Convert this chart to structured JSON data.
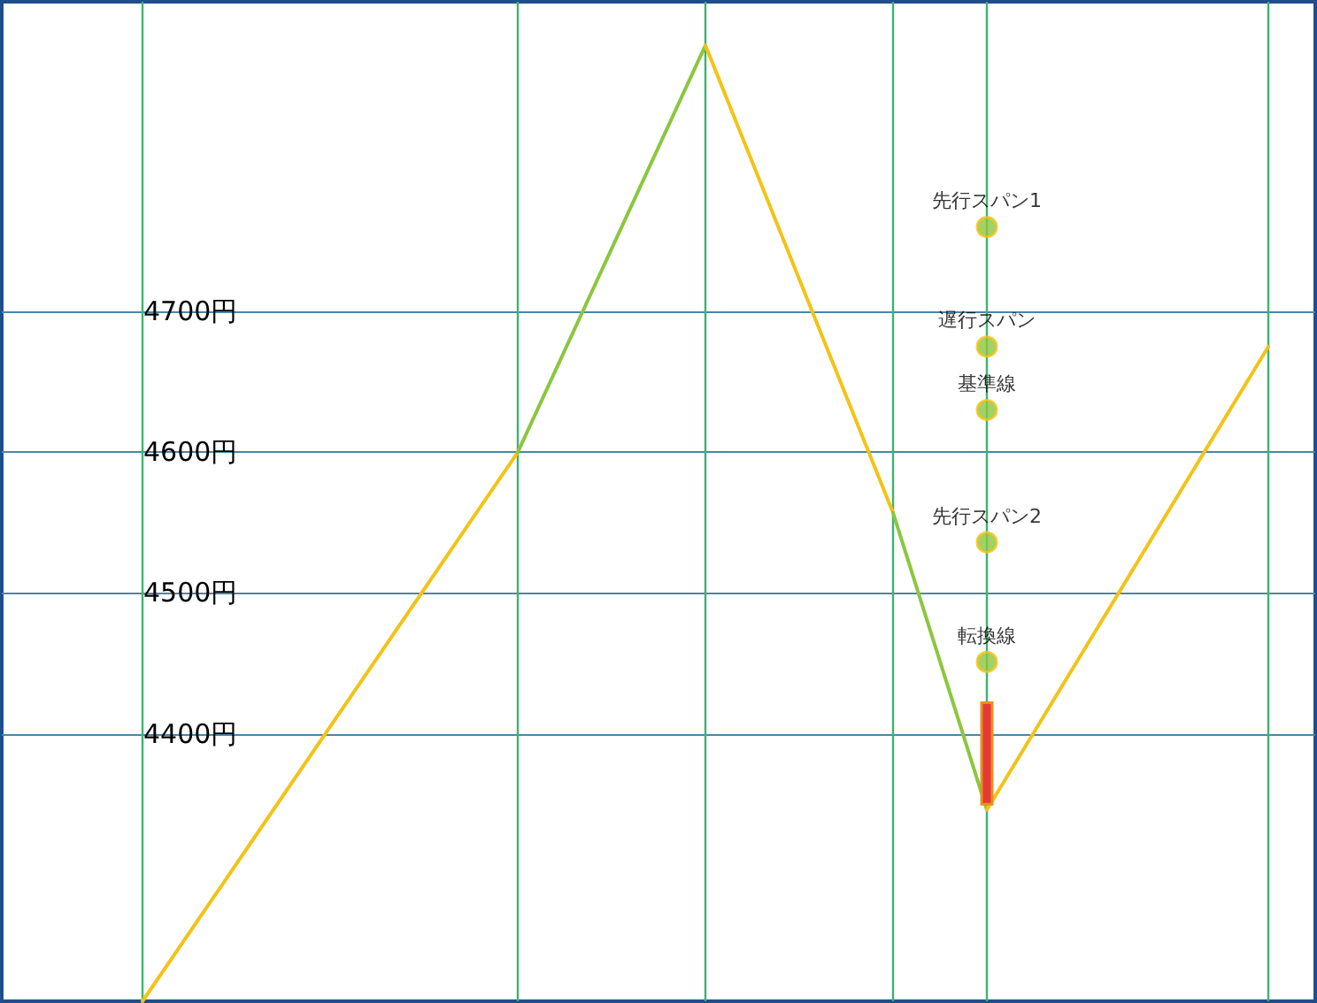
{
  "chart_data": {
    "type": "line",
    "categories": [
      null,
      null,
      null,
      null,
      null,
      null,
      null,
      null,
      null,
      null,
      null,
      null,
      null,
      null
    ],
    "ylim": [
      4210,
      4920
    ],
    "yticks": [
      {
        "value": 4400,
        "label": "4400円"
      },
      {
        "value": 4500,
        "label": "4500円"
      },
      {
        "value": 4600,
        "label": "4600円"
      },
      {
        "value": 4700,
        "label": "4700円"
      }
    ],
    "tick_labels": "y",
    "grid": true,
    "legend": false,
    "marker": "none",
    "line_style": "solid",
    "series": [
      {
        "color": "#f2c318",
        "values": [
          null,
          4210,
          null,
          null,
          null,
          4600,
          null,
          null,
          null,
          null,
          null,
          null,
          null,
          null
        ]
      },
      {
        "color": "#8cc63f",
        "values": [
          null,
          null,
          null,
          null,
          null,
          4600,
          null,
          4889,
          null,
          null,
          null,
          null,
          null,
          null
        ]
      },
      {
        "color": "#f2c318",
        "values": [
          null,
          null,
          null,
          null,
          null,
          null,
          null,
          4889,
          null,
          4557,
          null,
          null,
          null,
          null
        ]
      },
      {
        "color": "#8cc63f",
        "values": [
          null,
          null,
          null,
          null,
          null,
          null,
          null,
          null,
          null,
          4557,
          4346,
          null,
          null,
          null
        ]
      },
      {
        "color": "#f2c318",
        "values": [
          null,
          null,
          null,
          null,
          null,
          null,
          null,
          null,
          null,
          null,
          4346,
          null,
          null,
          4675
        ]
      },
      {
        "type": "scatter",
        "name": "先行スパン1",
        "color": "#8cc63f",
        "values": [
          null,
          null,
          null,
          null,
          null,
          null,
          null,
          null,
          null,
          null,
          4760,
          null,
          null,
          null
        ],
        "marker": "circle"
      },
      {
        "type": "scatter",
        "name": "遅行スパン",
        "color": "#8cc63f",
        "values": [
          null,
          null,
          null,
          null,
          null,
          null,
          null,
          null,
          null,
          null,
          4675,
          null,
          null,
          null
        ],
        "marker": "circle"
      },
      {
        "type": "scatter",
        "name": "基準線",
        "color": "#8cc63f",
        "values": [
          null,
          null,
          null,
          null,
          null,
          null,
          null,
          null,
          null,
          null,
          4630,
          null,
          null,
          null
        ],
        "marker": "circle"
      },
      {
        "type": "scatter",
        "name": "先行スパン2",
        "color": "#8cc63f",
        "values": [
          null,
          null,
          null,
          null,
          null,
          null,
          null,
          null,
          null,
          null,
          4536,
          null,
          null,
          null
        ],
        "marker": "circle"
      },
      {
        "type": "scatter",
        "name": "転換線",
        "color": "#8cc63f",
        "values": [
          null,
          null,
          null,
          null,
          null,
          null,
          null,
          null,
          null,
          null,
          4451,
          null,
          null,
          null
        ],
        "marker": "circle"
      },
      {
        "type": "candlestick",
        "color": "#e53935",
        "ohlc": [
          null,
          null,
          null,
          null,
          null,
          null,
          null,
          null,
          null,
          null,
          [
            4422,
            4422,
            4350,
            4350
          ],
          null,
          null,
          null
        ]
      }
    ]
  }
}
